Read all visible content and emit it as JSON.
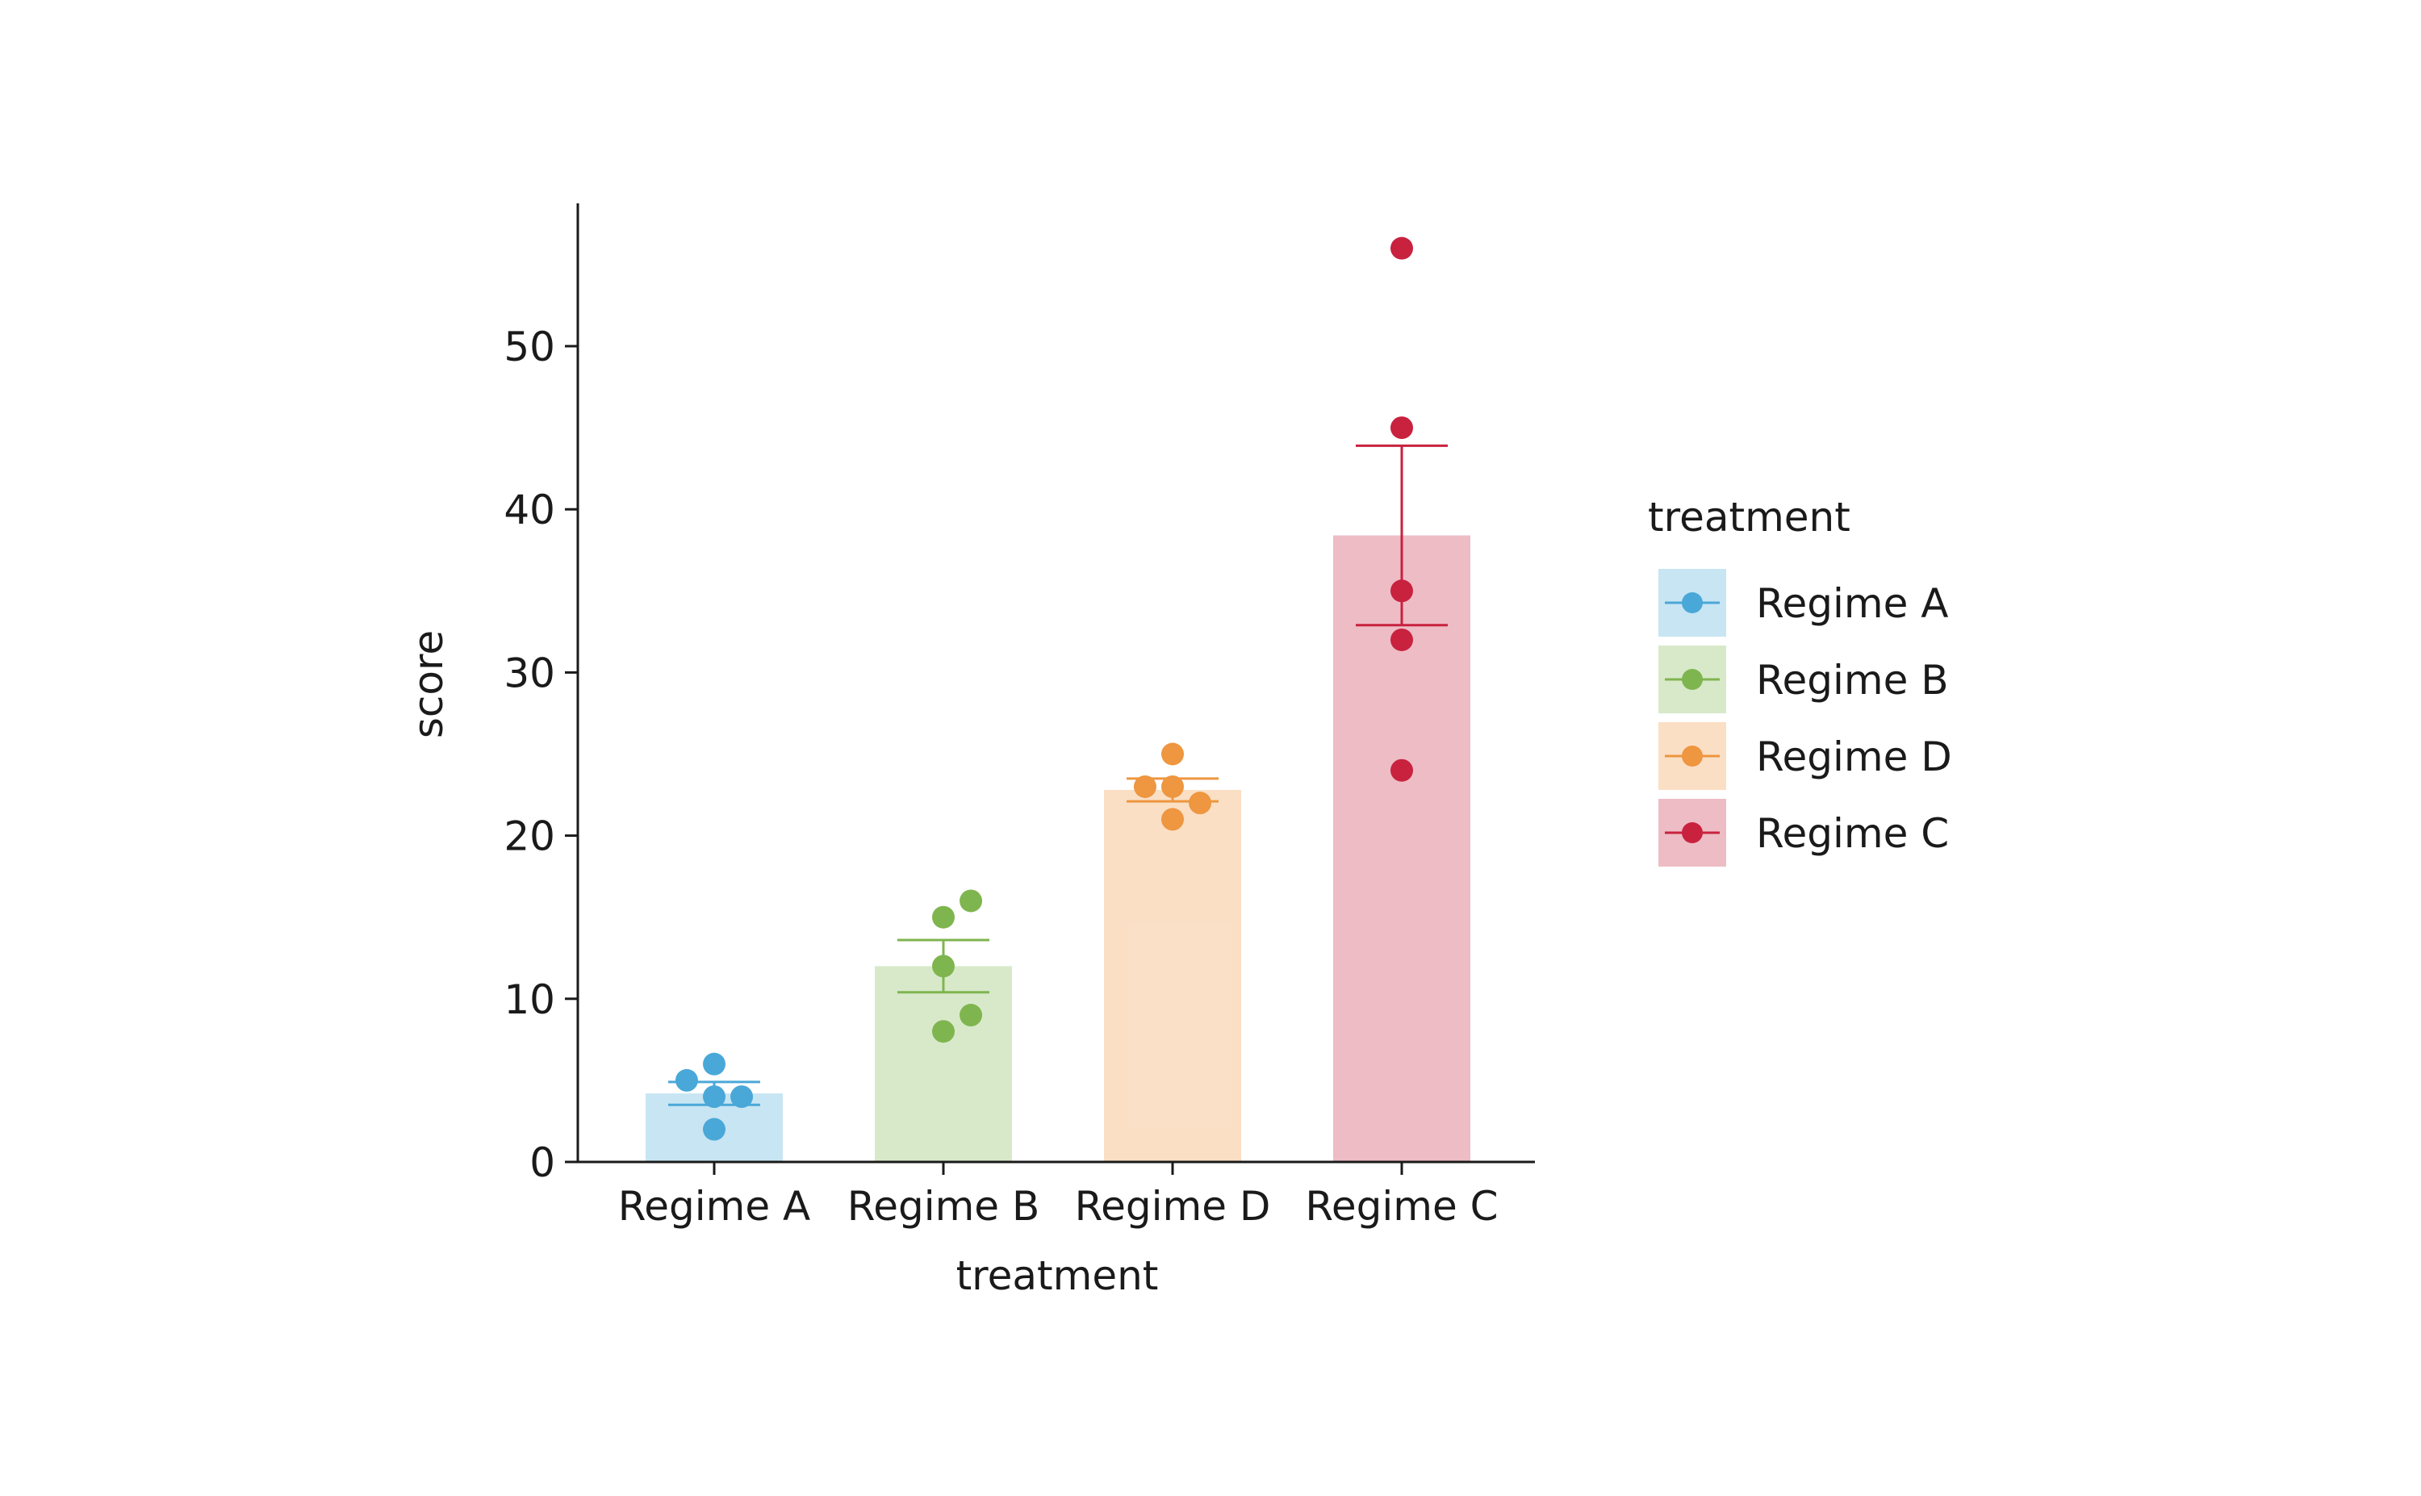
{
  "chart_data": {
    "type": "bar",
    "xlabel": "treatment",
    "ylabel": "score",
    "ylim": [
      0,
      59
    ],
    "yticks": [
      0,
      10,
      20,
      30,
      40,
      50
    ],
    "categories": [
      "Regime A",
      "Regime B",
      "Regime D",
      "Regime C"
    ],
    "series": [
      {
        "name": "Regime A",
        "color": "#4aa8d8",
        "mean": 4.2,
        "error": [
          3.5,
          4.9
        ],
        "points": [
          [
            0,
            6
          ],
          [
            -0.15,
            5
          ],
          [
            0,
            4
          ],
          [
            0.15,
            4
          ],
          [
            0,
            2
          ]
        ]
      },
      {
        "name": "Regime B",
        "color": "#7fb54f",
        "mean": 12.0,
        "error": [
          10.4,
          13.6
        ],
        "points": [
          [
            0.15,
            16
          ],
          [
            0,
            15
          ],
          [
            0,
            12
          ],
          [
            0.15,
            9
          ],
          [
            0,
            8
          ]
        ]
      },
      {
        "name": "Regime D",
        "color": "#ee9640",
        "mean": 22.8,
        "error": [
          22.1,
          23.5
        ],
        "points": [
          [
            0,
            25
          ],
          [
            -0.15,
            23
          ],
          [
            0,
            23
          ],
          [
            0.15,
            22
          ],
          [
            0,
            21
          ]
        ]
      },
      {
        "name": "Regime C",
        "color": "#c8223f",
        "mean": 38.4,
        "error": [
          32.9,
          43.9
        ],
        "points": [
          [
            0,
            56
          ],
          [
            0,
            45
          ],
          [
            0,
            35
          ],
          [
            0,
            32
          ],
          [
            0,
            24
          ]
        ]
      }
    ],
    "legend": {
      "title": "treatment",
      "position": "right"
    },
    "grid": false
  }
}
